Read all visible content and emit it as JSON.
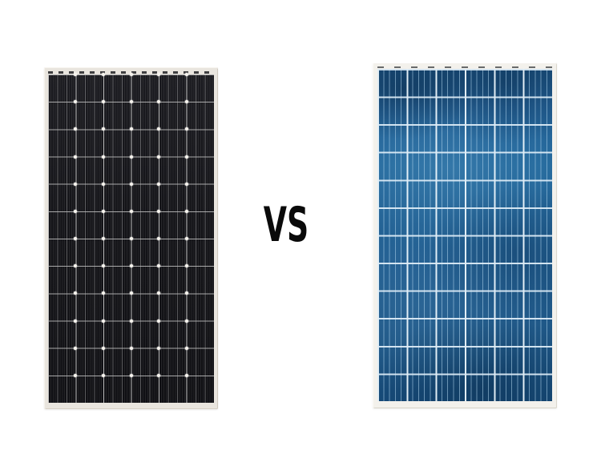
{
  "page": {
    "background_color": "#ffffff"
  },
  "comparison": {
    "vs_label": "VS",
    "vs_color": "#0a0a0a"
  },
  "left_panel": {
    "label": "monocrystalline-solar-panel-photo",
    "frame_color": "#e9e5de",
    "cell_base_color": "#15151a",
    "divider_color": "#bdbdbd",
    "dot_color": "#f7f4ee",
    "grid_columns": 6,
    "grid_rows": 12
  },
  "right_panel": {
    "label": "polycrystalline-solar-panel-photo",
    "frame_color": "#f3f1ec",
    "cell_base_color": "#215f91",
    "line_color": "#d9eaf6",
    "grid_columns": 6,
    "grid_rows": 12
  }
}
